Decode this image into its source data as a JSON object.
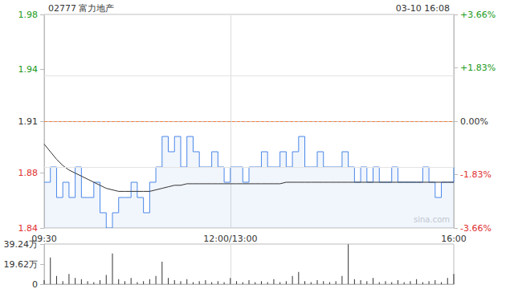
{
  "chart_data": [
    {
      "type": "line",
      "title": "02777 富力地产",
      "subtitle": "03-10 16:08",
      "watermark": "sina.com",
      "categories": [
        "09:30",
        null,
        null,
        null,
        null,
        null,
        null,
        null,
        null,
        null,
        null,
        null,
        null,
        null,
        null,
        null,
        null,
        null,
        null,
        null,
        null,
        null,
        null,
        null,
        null,
        null,
        null,
        null,
        null,
        null,
        "12:00/13:00",
        null,
        null,
        null,
        null,
        null,
        null,
        null,
        null,
        null,
        null,
        null,
        null,
        null,
        null,
        null,
        null,
        null,
        null,
        null,
        null,
        null,
        null,
        null,
        null,
        null,
        null,
        null,
        null,
        null,
        null,
        null,
        null,
        null,
        null,
        null,
        "16:00"
      ],
      "series": [
        {
          "color": "#4a86e8",
          "values": [
            1.87,
            1.88,
            1.86,
            1.87,
            1.86,
            1.88,
            1.86,
            1.86,
            1.87,
            1.85,
            1.84,
            1.85,
            1.86,
            1.86,
            1.87,
            1.86,
            1.85,
            1.87,
            1.88,
            1.9,
            1.89,
            1.9,
            1.88,
            1.9,
            1.89,
            1.88,
            1.88,
            1.89,
            1.88,
            1.87,
            1.88,
            1.88,
            1.87,
            1.88,
            1.88,
            1.89,
            1.88,
            1.88,
            1.89,
            1.88,
            1.89,
            1.9,
            1.88,
            1.88,
            1.89,
            1.88,
            1.88,
            1.88,
            1.89,
            1.88,
            1.87,
            1.88,
            1.87,
            1.88,
            1.87,
            1.87,
            1.88,
            1.87,
            1.87,
            1.87,
            1.87,
            1.88,
            1.87,
            1.86,
            1.87,
            1.87,
            1.88
          ]
        },
        {
          "color": "#333333",
          "values": [
            1.895,
            1.89,
            1.885,
            1.881,
            1.878,
            1.876,
            1.874,
            1.872,
            1.87,
            1.868,
            1.866,
            1.865,
            1.864,
            1.864,
            1.864,
            1.864,
            1.864,
            1.864,
            1.865,
            1.866,
            1.867,
            1.868,
            1.868,
            1.869,
            1.869,
            1.869,
            1.869,
            1.869,
            1.869,
            1.869,
            1.869,
            1.869,
            1.869,
            1.869,
            1.869,
            1.869,
            1.869,
            1.869,
            1.869,
            1.87,
            1.87,
            1.87,
            1.87,
            1.87,
            1.87,
            1.87,
            1.87,
            1.87,
            1.87,
            1.87,
            1.87,
            1.87,
            1.87,
            1.87,
            1.87,
            1.87,
            1.87,
            1.87,
            1.87,
            1.87,
            1.87,
            1.87,
            1.87,
            1.87,
            1.87,
            1.87,
            1.87
          ]
        }
      ],
      "prev_close": 1.91,
      "ylim": [
        1.84,
        1.98
      ],
      "yticks": [
        1.84,
        {
          "value": 1.876,
          "label": "1.88"
        },
        1.91,
        {
          "value": 1.944,
          "label": "1.94"
        },
        1.98
      ],
      "y2lim": [
        -3.66,
        3.66
      ],
      "y2ticks": [
        {
          "value": -3.66,
          "label": "-3.66%"
        },
        {
          "value": -1.83,
          "label": "-1.83%"
        },
        {
          "value": 0,
          "label": "0.00%"
        },
        {
          "value": 1.83,
          "label": "+1.83%"
        },
        {
          "value": 3.66,
          "label": "+3.66%"
        }
      ],
      "grid": true
    },
    {
      "type": "bar",
      "categories": [
        "09:30",
        null,
        null,
        null,
        null,
        null,
        null,
        null,
        null,
        null,
        null,
        null,
        null,
        null,
        null,
        null,
        null,
        null,
        null,
        null,
        null,
        null,
        null,
        null,
        null,
        null,
        null,
        null,
        null,
        null,
        "12:00/13:00",
        null,
        null,
        null,
        null,
        null,
        null,
        null,
        null,
        null,
        null,
        null,
        null,
        null,
        null,
        null,
        null,
        null,
        null,
        null,
        null,
        null,
        null,
        null,
        null,
        null,
        null,
        null,
        null,
        null,
        null,
        null,
        null,
        null,
        null,
        null,
        "16:00"
      ],
      "values": [
        4,
        26,
        8,
        3,
        10,
        6,
        5,
        3,
        2,
        4,
        9,
        30,
        5,
        3,
        6,
        2,
        3,
        5,
        8,
        22,
        6,
        4,
        3,
        5,
        2,
        3,
        4,
        2,
        3,
        2,
        6,
        3,
        2,
        4,
        2,
        3,
        2,
        5,
        2,
        3,
        8,
        12,
        3,
        2,
        4,
        3,
        2,
        3,
        8,
        39,
        5,
        4,
        3,
        6,
        2,
        3,
        2,
        4,
        2,
        3,
        5,
        2,
        3,
        4,
        2,
        6,
        10
      ],
      "color": "#333333",
      "ylim": [
        0,
        39.24
      ],
      "yticks": [
        0,
        {
          "value": 19.62,
          "label": "19.62万"
        },
        {
          "value": 39.24,
          "label": "39.24万"
        }
      ],
      "tick_labels": "y",
      "grid": true
    }
  ]
}
